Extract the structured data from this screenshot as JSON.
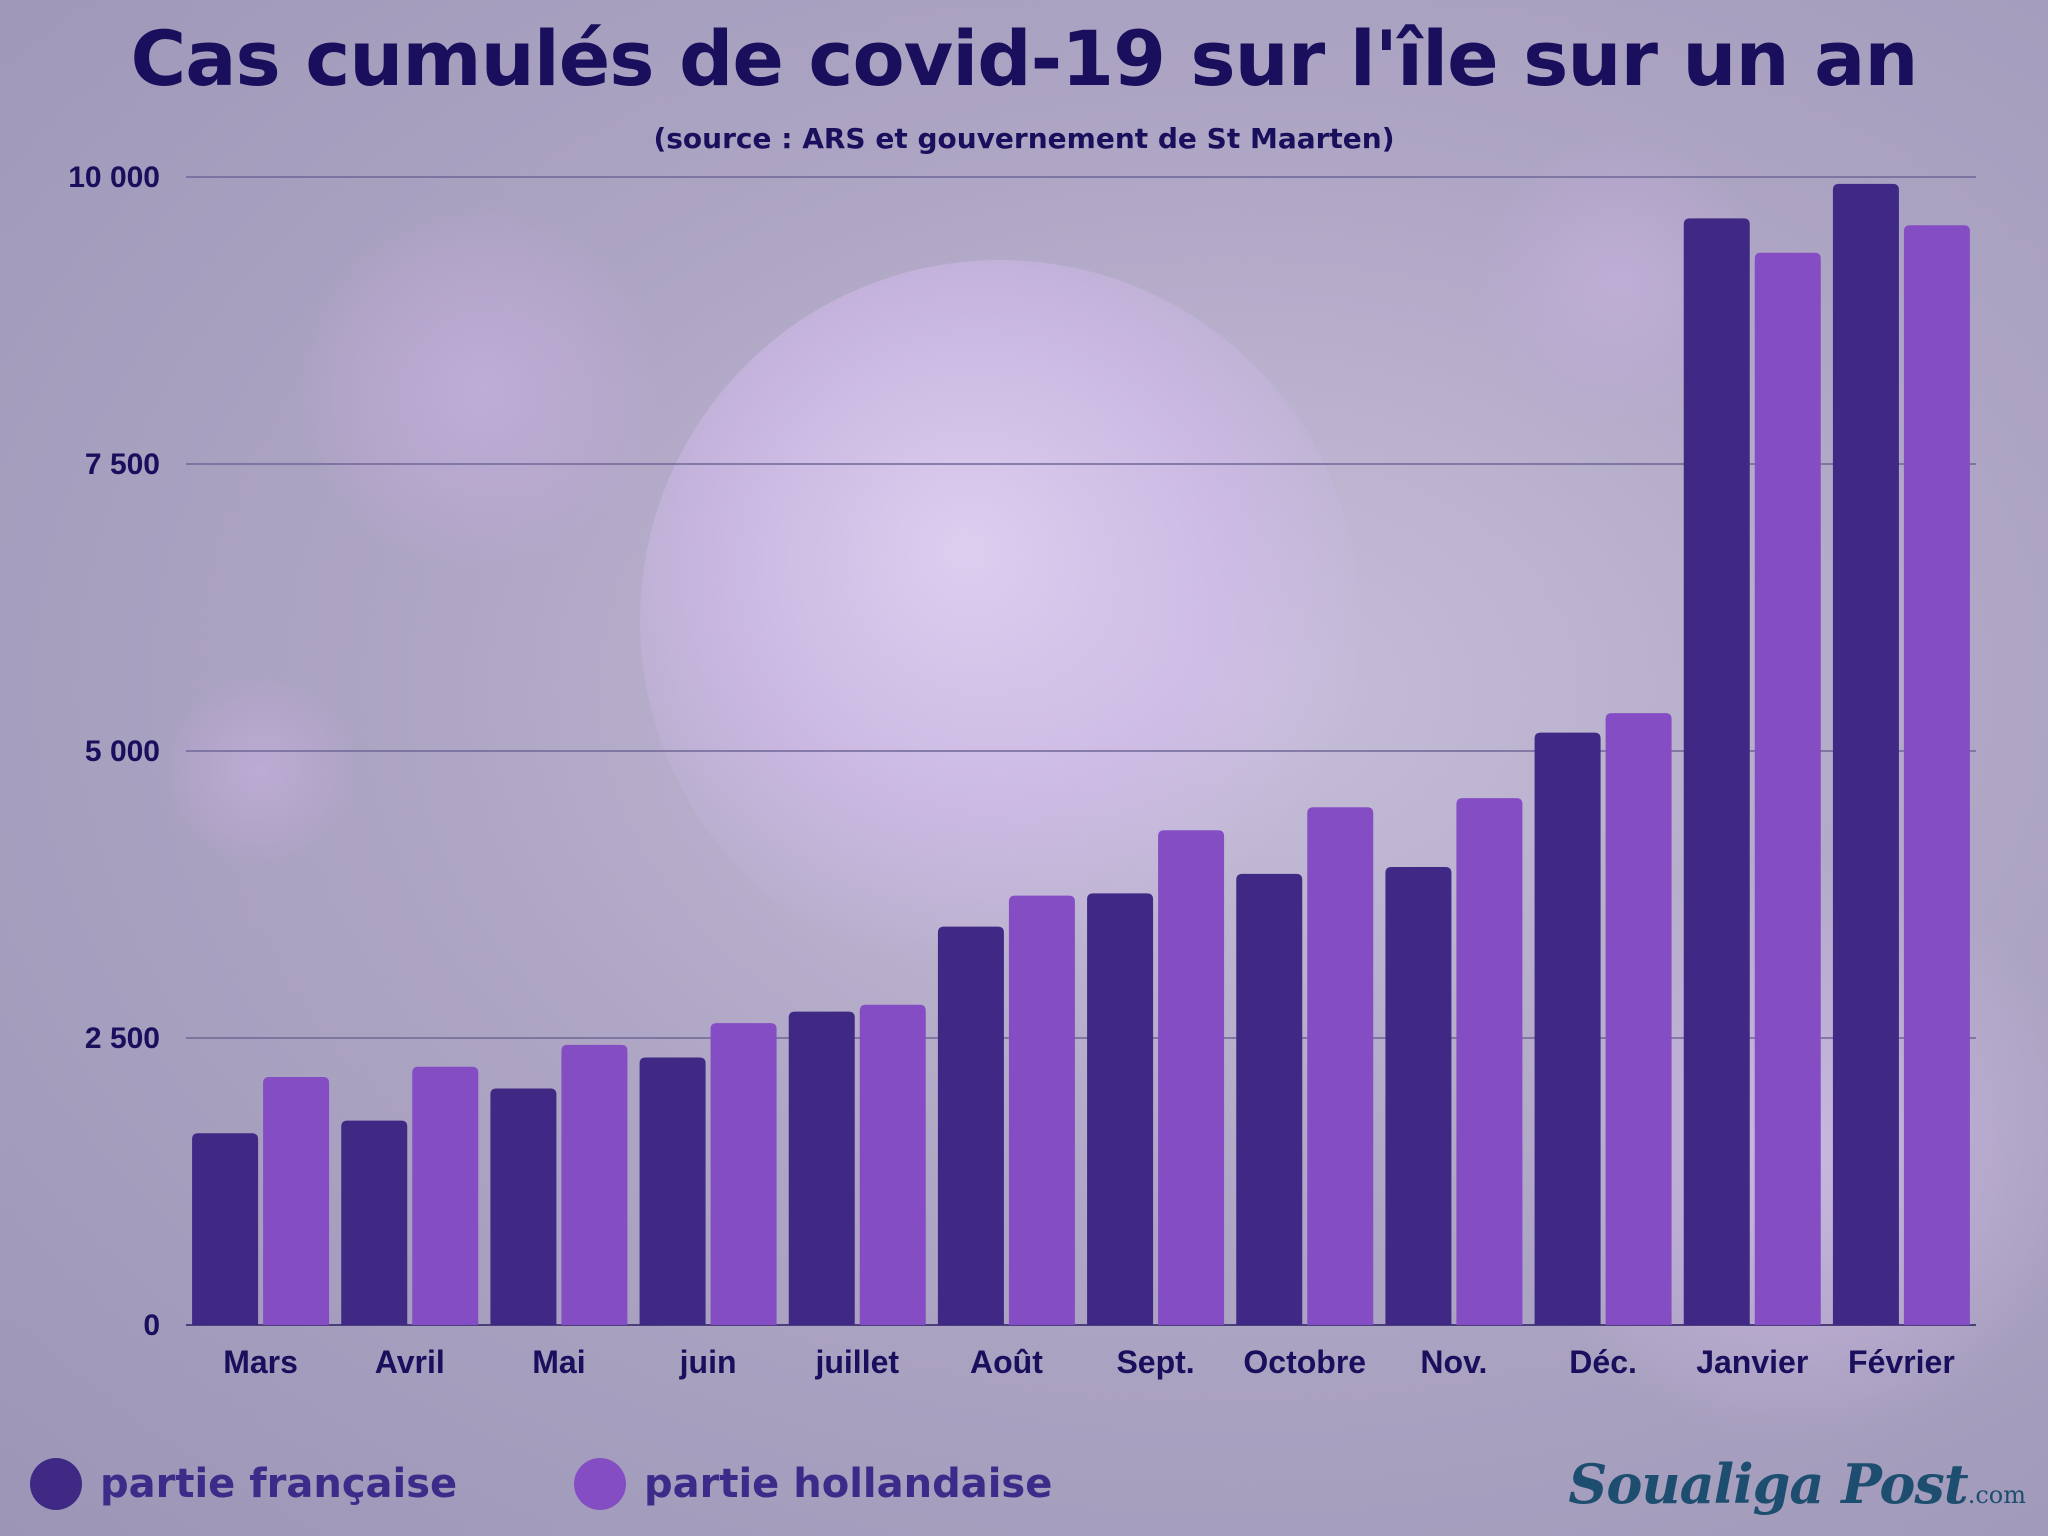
{
  "chart_data": {
    "type": "bar",
    "title": "Cas cumulés de covid-19 sur l'île sur un an",
    "subtitle": "(source : ARS et gouvernement de St Maarten)",
    "categories": [
      "Mars",
      "Avril",
      "Mai",
      "juin",
      "juillet",
      "Août",
      "Sept.",
      "Octobre",
      "Nov.",
      "Déc.",
      "Janvier",
      "Février"
    ],
    "series": [
      {
        "name": "partie française",
        "color": "#3f2985",
        "values": [
          1670,
          1780,
          2060,
          2330,
          2730,
          3470,
          3760,
          3930,
          3990,
          5160,
          9640,
          9940
        ]
      },
      {
        "name": "partie hollandaise",
        "color": "#844dc4",
        "values": [
          2160,
          2250,
          2440,
          2630,
          2790,
          3740,
          4310,
          4510,
          4590,
          5330,
          9340,
          9580
        ]
      }
    ],
    "yticks": [
      "0",
      "2 500",
      "5 000",
      "7 500",
      "10 000"
    ],
    "ytick_values": [
      0,
      2500,
      5000,
      7500,
      10000
    ],
    "ylim": [
      0,
      10000
    ],
    "grid": true,
    "legend": "bottom-left"
  },
  "brand": {
    "name": "Soualiga Post",
    "suffix": ".com"
  }
}
